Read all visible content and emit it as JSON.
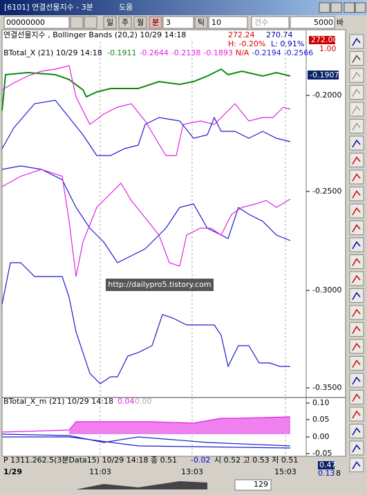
{
  "window": {
    "title": "[6101] 연결선물지수 - 3분",
    "help": "도움"
  },
  "toolbar": {
    "code": "00000000",
    "day": "일",
    "week": "주",
    "month": "월",
    "minute": "분",
    "minute_value": "3",
    "tick": "틱",
    "tick_value": "10",
    "count_label": "건수",
    "count_value": "5000",
    "bar": "바"
  },
  "main_panel": {
    "legend_1": "연결선물지수 , Bollinger Bands  (20,2) 10/29 14:18",
    "legend_1_values": [
      "272.24",
      "270.74"
    ],
    "high": "H: -0.20%",
    "low": "L: 0.91%",
    "price_box": "272.00",
    "price_change": "1.00",
    "legend_2": "BTotal_X  (21) 10/29 14:18",
    "legend_2_values": [
      "-0.1911",
      "-0.2644",
      "-0.2138",
      "-0.1893",
      "N/A",
      "-0.2194",
      "-0.2566"
    ],
    "current_value": "-0.1907",
    "axis_labels": [
      "-0.2000",
      "-0.2500",
      "-0.3000",
      "-0.3500"
    ],
    "watermark": "http://dailypro5.tistory.com"
  },
  "sub_panel": {
    "legend": "BTotal_X_m  (21) 10/29 14:18",
    "legend_values": [
      "0.04",
      "0.00"
    ],
    "axis_labels": [
      "0.10",
      "0.05",
      "0.00",
      "-0.05"
    ]
  },
  "status_bar": {
    "text": "P 1311.262.5(3분Data15) 10/29 14:18  종 0.51",
    "change": "-0.02",
    "rest": "시 0.52 고 0.53 저 0.51",
    "value": "0.47",
    "value_2": "0.13",
    "value_3": "8"
  },
  "time_axis": {
    "labels": [
      "1/29",
      "11:03",
      "13:03",
      "15:03"
    ]
  },
  "scroll": {
    "count": "129"
  }
}
